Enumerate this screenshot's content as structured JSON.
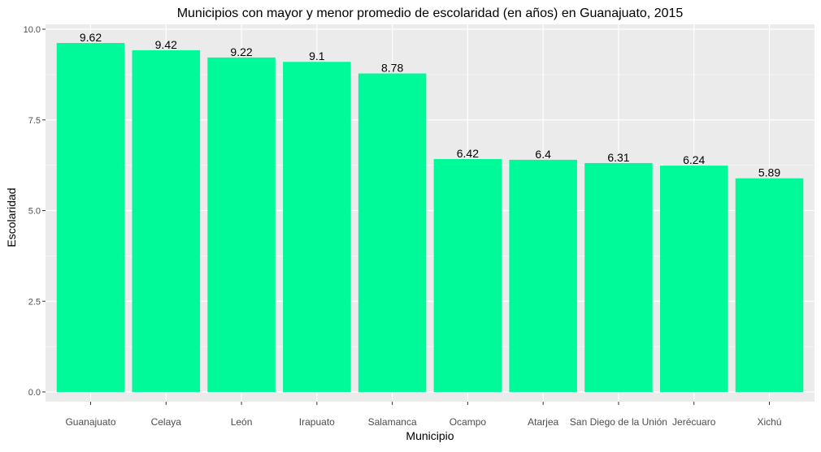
{
  "chart_data": {
    "type": "bar",
    "title": "Municipios con mayor y menor promedio de escolaridad (en años) en Guanajuato, 2015",
    "xlabel": "Municipio",
    "ylabel": "Escolaridad",
    "categories": [
      "Guanajuato",
      "Celaya",
      "León",
      "Irapuato",
      "Salamanca",
      "Ocampo",
      "Atarjea",
      "San Diego de la Unión",
      "Jerécuaro",
      "Xichú"
    ],
    "values": [
      9.62,
      9.42,
      9.22,
      9.1,
      8.78,
      6.42,
      6.4,
      6.31,
      6.24,
      5.89
    ],
    "value_labels": [
      "9.62",
      "9.42",
      "9.22",
      "9.1",
      "8.78",
      "6.42",
      "6.4",
      "6.31",
      "6.24",
      "5.89"
    ],
    "ylim": [
      0,
      10
    ],
    "yticks": [
      0,
      2.5,
      5,
      7.5,
      10
    ],
    "ytick_labels": [
      "0.0",
      "2.5",
      "5.0",
      "7.5",
      "10.0"
    ],
    "grid": true,
    "bar_color": "#00FA9A",
    "panel_background": "#EBEBEB"
  }
}
